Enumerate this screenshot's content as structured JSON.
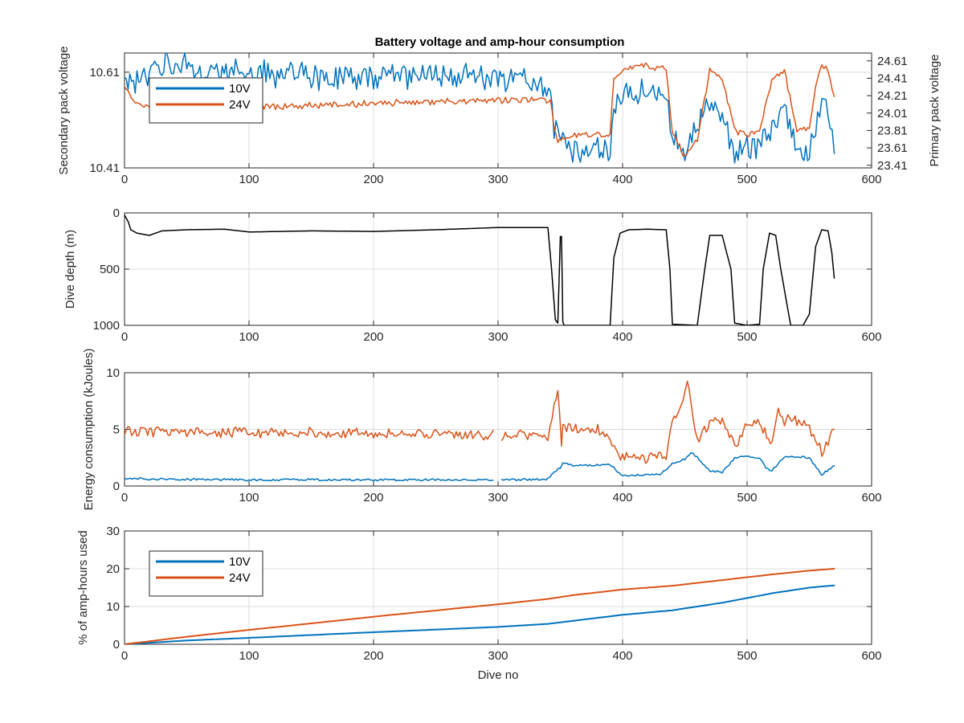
{
  "chart_data": [
    {
      "type": "line",
      "title": "Battery voltage and amp-hour consumption",
      "xlabel": "",
      "xlim": [
        0,
        600
      ],
      "xticks": [
        0,
        100,
        200,
        300,
        400,
        500,
        600
      ],
      "ylabel": "Secondary pack voltage",
      "ylim": [
        10.41,
        10.65
      ],
      "yticks": [
        10.41,
        10.61
      ],
      "ylabel_right": "Primary pack voltage",
      "ylim_right": [
        23.38,
        24.7
      ],
      "yticks_right": [
        23.41,
        23.61,
        23.81,
        24.01,
        24.21,
        24.41,
        24.61
      ],
      "grid": true,
      "legend": "top-left",
      "series": [
        {
          "name": "10V",
          "axis": "left",
          "color": "#0072BD",
          "x": [
            0,
            10,
            20,
            30,
            50,
            80,
            100,
            150,
            200,
            250,
            300,
            330,
            342,
            345,
            348,
            352,
            360,
            380,
            390,
            393,
            400,
            420,
            435,
            440,
            450,
            460,
            470,
            480,
            490,
            500,
            510,
            520,
            530,
            540,
            550,
            555,
            560,
            565,
            570
          ],
          "y": [
            10.6,
            10.59,
            10.61,
            10.63,
            10.62,
            10.61,
            10.61,
            10.6,
            10.6,
            10.6,
            10.6,
            10.59,
            10.57,
            10.5,
            10.48,
            10.46,
            10.45,
            10.45,
            10.45,
            10.52,
            10.56,
            10.57,
            10.56,
            10.48,
            10.45,
            10.5,
            10.55,
            10.52,
            10.45,
            10.45,
            10.45,
            10.5,
            10.53,
            10.45,
            10.45,
            10.5,
            10.56,
            10.52,
            10.44
          ],
          "noise": 0.03
        },
        {
          "name": "24V",
          "axis": "right",
          "color": "#D95319",
          "x": [
            0,
            10,
            20,
            30,
            50,
            80,
            100,
            150,
            200,
            250,
            300,
            330,
            342,
            345,
            348,
            352,
            360,
            380,
            390,
            393,
            400,
            420,
            435,
            440,
            450,
            460,
            470,
            480,
            490,
            500,
            510,
            520,
            530,
            540,
            550,
            555,
            560,
            565,
            570
          ],
          "y": [
            24.3,
            24.12,
            24.1,
            24.06,
            24.05,
            24.06,
            24.08,
            24.1,
            24.12,
            24.14,
            24.15,
            24.17,
            24.15,
            23.85,
            23.7,
            23.7,
            23.76,
            23.76,
            23.78,
            24.4,
            24.52,
            24.55,
            24.52,
            23.8,
            23.5,
            23.7,
            24.5,
            24.4,
            23.8,
            23.76,
            23.8,
            24.4,
            24.5,
            23.82,
            23.8,
            24.3,
            24.55,
            24.5,
            24.2
          ],
          "noise": 0.04
        }
      ]
    },
    {
      "type": "line",
      "title": "",
      "xlabel": "",
      "xlim": [
        0,
        600
      ],
      "xticks": [
        0,
        100,
        200,
        300,
        400,
        500,
        600
      ],
      "ylabel": "Dive depth (m)",
      "ylim": [
        0,
        1000
      ],
      "ylim_reversed": true,
      "yticks": [
        0,
        500,
        1000
      ],
      "grid": true,
      "series": [
        {
          "name": "",
          "color": "#000000",
          "x": [
            0,
            3,
            5,
            10,
            20,
            30,
            50,
            80,
            100,
            150,
            200,
            250,
            300,
            340,
            343,
            346,
            348,
            350,
            351,
            352,
            353,
            355,
            370,
            390,
            393,
            398,
            405,
            420,
            435,
            438,
            440,
            460,
            466,
            470,
            480,
            487,
            490,
            500,
            510,
            513,
            518,
            523,
            527,
            535,
            545,
            550,
            555,
            560,
            565,
            568,
            570
          ],
          "y": [
            20,
            80,
            150,
            180,
            200,
            160,
            150,
            145,
            170,
            160,
            165,
            150,
            130,
            130,
            500,
            950,
            980,
            210,
            210,
            970,
            1000,
            1000,
            1000,
            1000,
            400,
            180,
            150,
            145,
            150,
            500,
            990,
            1000,
            500,
            200,
            200,
            500,
            980,
            1000,
            990,
            500,
            180,
            200,
            500,
            1000,
            1000,
            900,
            300,
            150,
            160,
            350,
            580
          ]
        }
      ]
    },
    {
      "type": "line",
      "title": "",
      "xlabel": "",
      "xlim": [
        0,
        600
      ],
      "xticks": [
        0,
        100,
        200,
        300,
        400,
        500,
        600
      ],
      "ylabel": "Energy consumption (kJoules)",
      "ylim": [
        0,
        10
      ],
      "yticks": [
        0,
        5,
        10
      ],
      "grid": true,
      "gap": [
        296,
        303
      ],
      "series": [
        {
          "name": "",
          "color": "#0072BD",
          "x": [
            0,
            20,
            100,
            200,
            296,
            303,
            340,
            345,
            350,
            352,
            360,
            390,
            400,
            430,
            440,
            450,
            455,
            460,
            470,
            480,
            490,
            500,
            510,
            515,
            520,
            530,
            540,
            550,
            560,
            570
          ],
          "y": [
            0.7,
            0.6,
            0.55,
            0.55,
            0.55,
            0.55,
            0.6,
            1.2,
            1.6,
            2.0,
            1.8,
            1.9,
            0.9,
            1.0,
            2.0,
            2.4,
            3.0,
            2.5,
            1.3,
            1.2,
            2.5,
            2.6,
            2.5,
            1.6,
            1.4,
            2.6,
            2.6,
            2.5,
            1.0,
            1.8
          ],
          "noise": 0.1
        },
        {
          "name": "",
          "color": "#D95319",
          "x": [
            0,
            10,
            20,
            50,
            100,
            150,
            200,
            250,
            296,
            303,
            340,
            345,
            348,
            351,
            352,
            355,
            380,
            390,
            395,
            400,
            420,
            435,
            440,
            450,
            452,
            455,
            460,
            470,
            480,
            490,
            500,
            510,
            520,
            525,
            530,
            540,
            550,
            555,
            560,
            565,
            570
          ],
          "y": [
            5.0,
            4.8,
            4.8,
            4.8,
            4.7,
            4.7,
            4.6,
            4.6,
            4.5,
            4.4,
            4.5,
            7.0,
            8.0,
            4.0,
            5.2,
            5.2,
            5.0,
            4.0,
            2.8,
            2.6,
            2.5,
            2.8,
            5.5,
            8.0,
            9.5,
            7.0,
            4.0,
            5.5,
            6.0,
            3.5,
            5.5,
            5.5,
            4.0,
            6.5,
            5.8,
            5.8,
            5.0,
            4.0,
            3.0,
            3.8,
            5.0
          ],
          "noise": 0.5
        }
      ]
    },
    {
      "type": "line",
      "title": "",
      "xlabel": "Dive no",
      "xlim": [
        0,
        600
      ],
      "xticks": [
        0,
        100,
        200,
        300,
        400,
        500,
        600
      ],
      "ylabel": "% of amp-hours used",
      "ylim": [
        0,
        30
      ],
      "yticks": [
        0,
        10,
        20,
        30
      ],
      "grid": true,
      "legend": "top-left",
      "series": [
        {
          "name": "10V",
          "color": "#0072BD",
          "x": [
            0,
            50,
            100,
            200,
            300,
            340,
            360,
            400,
            440,
            480,
            520,
            550,
            570
          ],
          "y": [
            0,
            1.0,
            1.7,
            3.2,
            4.6,
            5.4,
            6.2,
            7.8,
            9.0,
            11.0,
            13.5,
            15.0,
            15.6
          ]
        },
        {
          "name": "24V",
          "color": "#D95319",
          "x": [
            0,
            50,
            100,
            200,
            300,
            340,
            360,
            400,
            440,
            480,
            520,
            550,
            570
          ],
          "y": [
            0,
            2.0,
            3.8,
            7.3,
            10.6,
            12.0,
            13.0,
            14.5,
            15.5,
            17.0,
            18.5,
            19.5,
            20.0
          ]
        }
      ]
    }
  ]
}
